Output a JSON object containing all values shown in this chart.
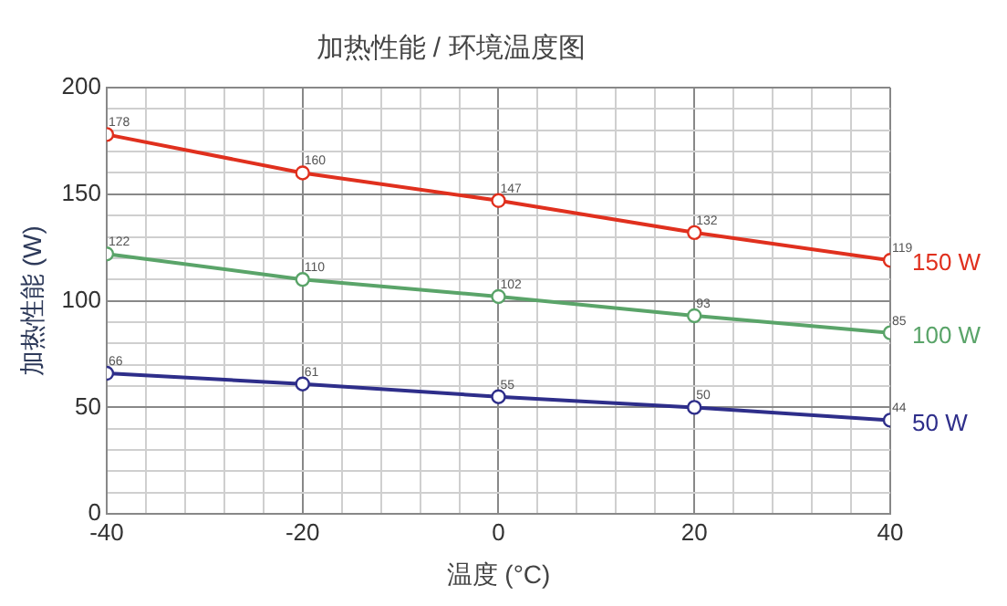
{
  "chart_data": {
    "type": "line",
    "title": "加热性能 / 环境温度图",
    "xlabel": "温度 (°C)",
    "ylabel": "加热性能 (W)",
    "x": [
      -40,
      -20,
      0,
      20,
      40
    ],
    "series": [
      {
        "name": "150 W",
        "color": "#e0301e",
        "values": [
          178,
          160,
          147,
          132,
          119
        ]
      },
      {
        "name": "100 W",
        "color": "#5aa469",
        "values": [
          122,
          110,
          102,
          93,
          85
        ]
      },
      {
        "name": "50 W",
        "color": "#2e2e8a",
        "values": [
          66,
          61,
          55,
          50,
          44
        ]
      }
    ],
    "xlim": [
      -40,
      40
    ],
    "xticks": [
      -40,
      {
        "value": -36,
        "label": null
      },
      {
        "value": -32,
        "label": null
      },
      {
        "value": -28,
        "label": null
      },
      {
        "value": -24,
        "label": null
      },
      -20,
      {
        "value": -16,
        "label": null
      },
      {
        "value": -12,
        "label": null
      },
      {
        "value": -8,
        "label": null
      },
      {
        "value": -4,
        "label": null
      },
      0,
      {
        "value": 4,
        "label": null
      },
      {
        "value": 8,
        "label": null
      },
      {
        "value": 12,
        "label": null
      },
      {
        "value": 16,
        "label": null
      },
      20,
      {
        "value": 24,
        "label": null
      },
      {
        "value": 28,
        "label": null
      },
      {
        "value": 32,
        "label": null
      },
      {
        "value": 36,
        "label": null
      },
      40
    ],
    "ylim": [
      0,
      200
    ],
    "yticks": [
      0,
      {
        "value": 10,
        "label": null
      },
      {
        "value": 20,
        "label": null
      },
      {
        "value": 30,
        "label": null
      },
      {
        "value": 40,
        "label": null
      },
      50,
      {
        "value": 60,
        "label": null
      },
      {
        "value": 70,
        "label": null
      },
      {
        "value": 80,
        "label": null
      },
      {
        "value": 90,
        "label": null
      },
      100,
      {
        "value": 110,
        "label": null
      },
      {
        "value": 120,
        "label": null
      },
      {
        "value": 130,
        "label": null
      },
      {
        "value": 140,
        "label": null
      },
      150,
      {
        "value": 160,
        "label": null
      },
      {
        "value": 170,
        "label": null
      },
      {
        "value": 180,
        "label": null
      },
      {
        "value": 190,
        "label": null
      },
      200
    ],
    "grid": true,
    "legend": false,
    "marker": "circle",
    "line_style": "solid",
    "data_labels": true
  }
}
